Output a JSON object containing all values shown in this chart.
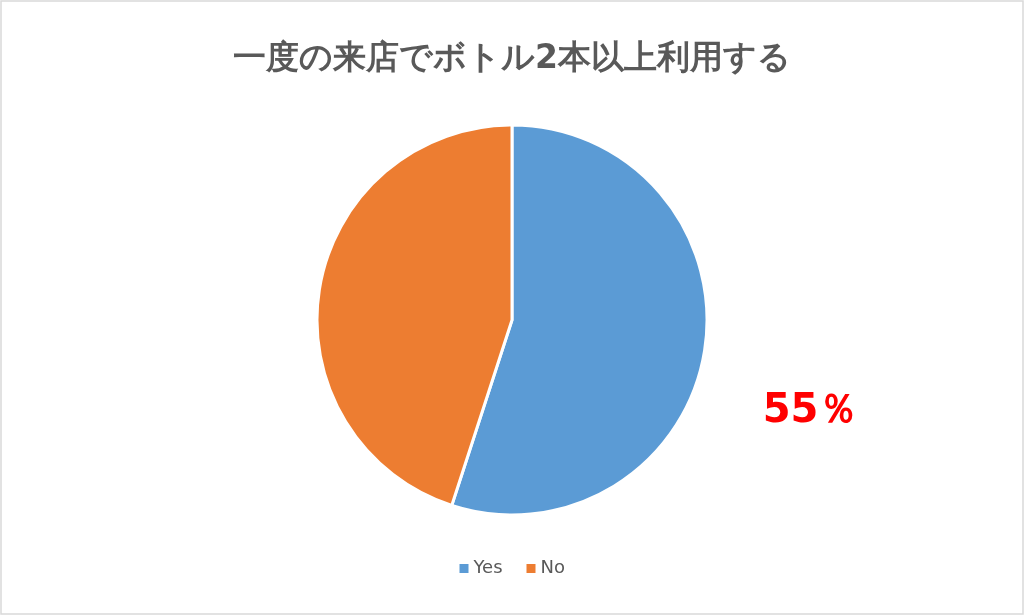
{
  "chart_data": {
    "type": "pie",
    "title": "一度の来店でボトル2本以上利用する",
    "categories": [
      "Yes",
      "No"
    ],
    "values": [
      55,
      45
    ],
    "colors": [
      "#5b9bd5",
      "#ed7d31"
    ],
    "value_labels": [
      "55％",
      null
    ],
    "legend": "bottom"
  }
}
